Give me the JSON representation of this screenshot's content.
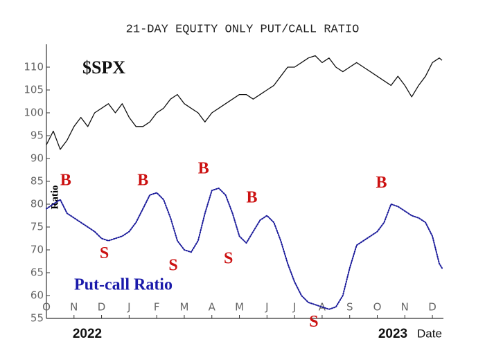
{
  "chart_data": {
    "type": "line",
    "title": "21-DAY EQUITY ONLY PUT/CALL RATIO",
    "y_label": "Ratio",
    "x_label": "Date",
    "year_labels": [
      "2022",
      "2023"
    ],
    "xlim": [
      0,
      14.4
    ],
    "xticks": [
      {
        "value": 0,
        "label": "O"
      },
      {
        "value": 1,
        "label": "N"
      },
      {
        "value": 2,
        "label": "D"
      },
      {
        "value": 3,
        "label": "J"
      },
      {
        "value": 4,
        "label": "F"
      },
      {
        "value": 5,
        "label": "M"
      },
      {
        "value": 6,
        "label": "A"
      },
      {
        "value": 7,
        "label": "M"
      },
      {
        "value": 8,
        "label": "J"
      },
      {
        "value": 9,
        "label": "J"
      },
      {
        "value": 10,
        "label": "A"
      },
      {
        "value": 11,
        "label": "S"
      },
      {
        "value": 12,
        "label": "O"
      },
      {
        "value": 13,
        "label": "N"
      },
      {
        "value": 14,
        "label": "D"
      }
    ],
    "ylim": [
      55,
      115
    ],
    "yticks": [
      55,
      60,
      65,
      70,
      75,
      80,
      85,
      90,
      95,
      100,
      105,
      110
    ],
    "x": [
      0,
      0.25,
      0.5,
      0.75,
      1,
      1.25,
      1.5,
      1.75,
      2,
      2.25,
      2.5,
      2.75,
      3,
      3.25,
      3.5,
      3.75,
      4,
      4.25,
      4.5,
      4.75,
      5,
      5.25,
      5.5,
      5.75,
      6,
      6.25,
      6.5,
      6.75,
      7,
      7.25,
      7.5,
      7.75,
      8,
      8.25,
      8.5,
      8.75,
      9,
      9.25,
      9.5,
      9.75,
      10,
      10.25,
      10.5,
      10.75,
      11,
      11.25,
      11.5,
      11.75,
      12,
      12.25,
      12.5,
      12.75,
      13,
      13.25,
      13.5,
      13.75,
      14,
      14.25,
      14.35
    ],
    "series": [
      {
        "name": "$SPX",
        "color": "#111111",
        "style": "solid",
        "values": [
          93,
          96,
          92,
          94,
          97,
          99,
          97,
          100,
          101,
          102,
          100,
          102,
          99,
          97,
          97,
          98,
          100,
          101,
          103,
          104,
          102,
          101,
          100,
          98,
          100,
          101,
          102,
          103,
          104,
          104,
          103,
          104,
          105,
          106,
          108,
          110,
          110,
          111,
          112,
          112.5,
          111,
          112,
          110,
          109,
          110,
          111,
          110,
          109,
          108,
          107,
          106,
          108,
          106,
          103.5,
          106,
          108,
          111,
          112,
          111.5
        ]
      },
      {
        "name": "Put-call Ratio",
        "color": "#1a1a9a",
        "style": "dotted",
        "values": [
          79,
          80,
          81,
          78,
          77,
          76,
          75,
          74,
          72.5,
          72,
          72.5,
          73,
          74,
          76,
          79,
          82,
          82.5,
          81,
          77,
          72,
          70,
          69.5,
          72,
          78,
          83,
          83.5,
          82,
          78,
          73,
          71.5,
          74,
          76.5,
          77.5,
          76,
          72,
          67,
          63,
          60,
          58.5,
          58,
          57.5,
          57,
          57.5,
          60,
          66,
          71,
          72,
          73,
          74,
          76,
          80,
          79.5,
          78.5,
          77.5,
          77,
          76,
          73,
          67,
          66
        ]
      }
    ],
    "annotations": [
      {
        "text": "B",
        "x": 0.7,
        "y": 85
      },
      {
        "text": "S",
        "x": 2.1,
        "y": 69
      },
      {
        "text": "B",
        "x": 3.5,
        "y": 85
      },
      {
        "text": "S",
        "x": 4.6,
        "y": 66.4
      },
      {
        "text": "B",
        "x": 5.7,
        "y": 87.6
      },
      {
        "text": "S",
        "x": 6.6,
        "y": 67.9
      },
      {
        "text": "B",
        "x": 7.45,
        "y": 81.2
      },
      {
        "text": "S",
        "x": 9.7,
        "y": 54
      },
      {
        "text": "B",
        "x": 12.15,
        "y": 84.5
      }
    ]
  }
}
